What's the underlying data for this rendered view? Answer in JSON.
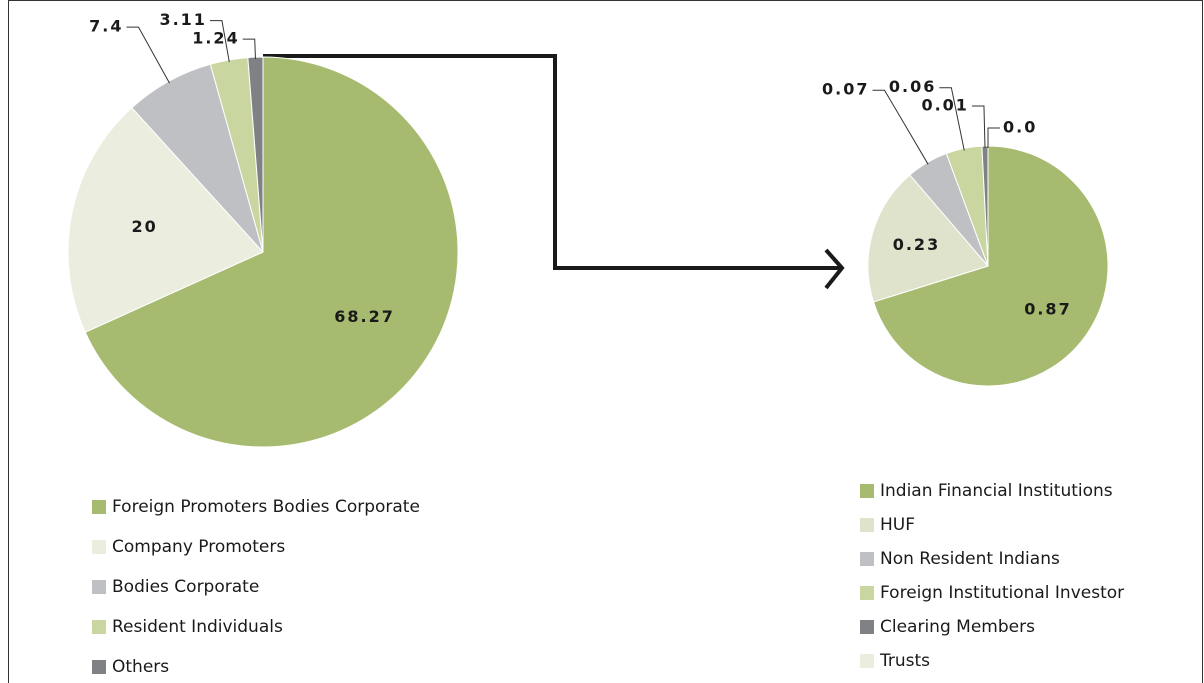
{
  "chart_data": [
    {
      "type": "pie",
      "categories": [
        "Foreign Promoters Bodies Corporate",
        "Company Promoters",
        "Bodies Corporate",
        "Resident Individuals",
        "Others"
      ],
      "values": [
        68.27,
        20,
        7.4,
        3.11,
        1.24
      ],
      "colors": [
        "#a6bb6f",
        "#ebeddf",
        "#bfc0c3",
        "#c9d69f",
        "#808184"
      ]
    },
    {
      "type": "pie",
      "categories": [
        "Indian Financial Institutions",
        "HUF",
        "Non Resident Indians",
        "Foreign Institutional Investor",
        "Clearing Members",
        "Trusts"
      ],
      "values": [
        0.87,
        0.23,
        0.07,
        0.06,
        0.01,
        0
      ],
      "value_labels": [
        "0.87",
        "0.23",
        "0.07",
        "0.06",
        "0.01",
        "0.0"
      ],
      "colors": [
        "#a6bb6f",
        "#dfe3cb",
        "#bfc0c3",
        "#c9d69f",
        "#808184",
        "#ebeddf"
      ]
    }
  ]
}
